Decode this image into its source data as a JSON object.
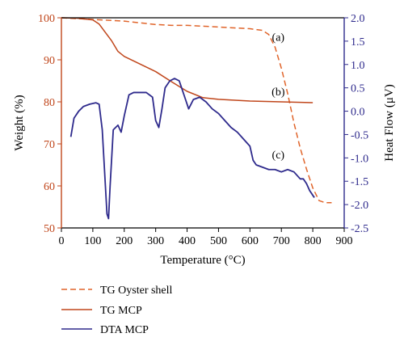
{
  "chart_data": {
    "type": "line",
    "xlabel": "Temperature (°C)",
    "ylabel_left": "Weight (%)",
    "ylabel_right": "Heat Flow (μV)",
    "xlim": [
      0,
      900
    ],
    "ylim_left": [
      50,
      100
    ],
    "ylim_right": [
      -2.5,
      2.0
    ],
    "x_ticks": [
      "0",
      "100",
      "200",
      "300",
      "400",
      "500",
      "600",
      "700",
      "800",
      "900"
    ],
    "y_left_ticks": [
      "100",
      "90",
      "80",
      "70",
      "60",
      "50"
    ],
    "y_right_ticks": [
      "2.0",
      "1.5",
      "1.0",
      "0.5",
      "0.0",
      "-0.5",
      "-1.0",
      "-1.5",
      "-2.0",
      "-2.5"
    ],
    "colors": {
      "left_axis": "#c0461b",
      "right_axis": "#2e2a8c",
      "tg_oyster": "#e0642a",
      "tg_mcp": "#c0461b",
      "dta_mcp": "#2e2a8c"
    },
    "annotations": [
      {
        "label": "(a)",
        "x": 690,
        "y": 94.5
      },
      {
        "label": "(b)",
        "x": 690,
        "y": 81.5
      },
      {
        "label": "(c)",
        "x": 690,
        "y": 66.5
      }
    ],
    "series": [
      {
        "name": "TG Oyster shell",
        "axis": "left",
        "style": "dashed",
        "x": [
          0,
          50,
          100,
          150,
          200,
          250,
          300,
          350,
          400,
          450,
          500,
          550,
          600,
          640,
          660,
          680,
          700,
          720,
          740,
          760,
          780,
          800,
          820,
          840,
          860
        ],
        "y": [
          100,
          99.8,
          99.6,
          99.4,
          99.2,
          98.8,
          98.4,
          98.2,
          98.2,
          98.0,
          97.8,
          97.6,
          97.4,
          97.0,
          96.0,
          93.0,
          88.0,
          82.0,
          75.0,
          69.0,
          64.0,
          59.5,
          56.5,
          56.0,
          56.0
        ]
      },
      {
        "name": "TG MCP",
        "axis": "left",
        "style": "solid",
        "x": [
          0,
          50,
          100,
          120,
          140,
          160,
          180,
          200,
          250,
          300,
          350,
          400,
          450,
          500,
          600,
          700,
          800
        ],
        "y": [
          100,
          99.9,
          99.5,
          98.5,
          96.5,
          94.5,
          92.0,
          90.8,
          89.0,
          87.2,
          84.8,
          82.5,
          81.0,
          80.6,
          80.2,
          80.0,
          79.8
        ]
      },
      {
        "name": "DTA MCP",
        "axis": "right",
        "style": "solid",
        "x": [
          30,
          40,
          55,
          70,
          90,
          110,
          120,
          130,
          140,
          145,
          150,
          155,
          165,
          180,
          190,
          200,
          215,
          230,
          250,
          270,
          290,
          300,
          310,
          320,
          330,
          345,
          360,
          375,
          385,
          395,
          405,
          420,
          440,
          460,
          480,
          500,
          520,
          540,
          560,
          580,
          600,
          610,
          620,
          640,
          660,
          680,
          700,
          720,
          740,
          760,
          770,
          780,
          790,
          800,
          805
        ],
        "y": [
          -0.55,
          -0.15,
          0.0,
          0.1,
          0.15,
          0.18,
          0.15,
          -0.4,
          -1.6,
          -2.2,
          -2.3,
          -1.6,
          -0.4,
          -0.3,
          -0.45,
          -0.1,
          0.35,
          0.4,
          0.4,
          0.4,
          0.3,
          -0.2,
          -0.35,
          0.05,
          0.5,
          0.65,
          0.7,
          0.65,
          0.45,
          0.25,
          0.05,
          0.25,
          0.3,
          0.2,
          0.05,
          -0.05,
          -0.2,
          -0.35,
          -0.45,
          -0.6,
          -0.75,
          -1.05,
          -1.15,
          -1.2,
          -1.25,
          -1.25,
          -1.3,
          -1.25,
          -1.3,
          -1.45,
          -1.45,
          -1.55,
          -1.7,
          -1.8,
          -1.85
        ]
      }
    ],
    "legend": [
      {
        "label": "TG Oyster shell",
        "style": "dashed",
        "color": "#e0642a"
      },
      {
        "label": "TG MCP",
        "style": "solid",
        "color": "#c0461b"
      },
      {
        "label": "DTA MCP",
        "style": "solid",
        "color": "#2e2a8c"
      }
    ]
  }
}
